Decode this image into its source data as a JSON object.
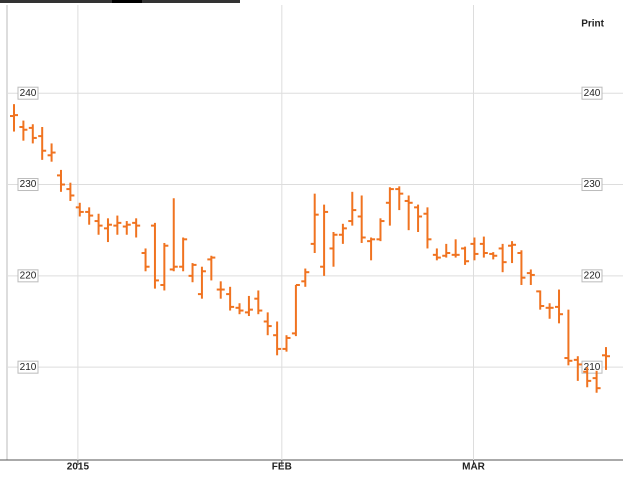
{
  "print_label": "Print",
  "chart_data": {
    "type": "ohlc",
    "color": "#f07320",
    "categories": [
      null,
      null,
      null,
      null,
      null,
      null,
      null,
      null,
      null,
      null,
      null,
      null,
      null,
      null,
      null,
      null,
      null,
      null,
      null,
      null,
      null,
      null,
      null,
      null,
      null,
      null,
      null,
      null,
      null,
      null,
      null,
      null,
      null,
      null,
      null,
      null,
      null,
      null,
      null,
      null,
      null,
      null,
      null,
      null,
      null,
      null,
      null,
      null,
      null,
      null,
      null,
      null,
      null,
      null,
      null,
      null,
      null,
      null,
      null,
      null,
      null,
      null,
      null,
      null
    ],
    "open": [
      237.5,
      236.3,
      236.2,
      235.3,
      233.2,
      231,
      229.5,
      227.5,
      227,
      226,
      225.2,
      225.5,
      225.4,
      225.8,
      222.5,
      225.5,
      219,
      220.7,
      221,
      220,
      218,
      221.8,
      218.5,
      218,
      216.5,
      216,
      217.5,
      215,
      213.5,
      212,
      213.7,
      219.4,
      223.5,
      221,
      223,
      224.5,
      226,
      226.5,
      223.8,
      224,
      228,
      229.5,
      228.2,
      227.5,
      226.8,
      222.3,
      222.2,
      222.3,
      223,
      223.5,
      223.5,
      222.4,
      223,
      223.3,
      222.5,
      220.3,
      218.3,
      216.5,
      216.6,
      211,
      210.8,
      209.5,
      208.8,
      211.3
    ],
    "high": [
      238.8,
      237,
      236.6,
      236.3,
      234.5,
      231.6,
      230.2,
      228,
      227.5,
      226.8,
      226.3,
      226.6,
      226,
      226.3,
      223,
      225.8,
      223.6,
      228.5,
      224.2,
      221.4,
      221,
      222.2,
      219.4,
      218.8,
      217,
      217.8,
      218.4,
      216,
      215,
      213.5,
      219,
      220.8,
      229,
      227.8,
      224.8,
      225.7,
      229.2,
      228.8,
      224.2,
      226.3,
      229.7,
      229.8,
      228.8,
      227.8,
      227.5,
      223,
      223.5,
      224,
      223.2,
      224.2,
      224.3,
      222.6,
      223.5,
      223.8,
      222.8,
      220.7,
      218.4,
      217,
      218.5,
      216.3,
      211.2,
      210,
      209.6,
      212.2
    ],
    "low": [
      235.8,
      234.8,
      234.5,
      232.7,
      232.5,
      229.2,
      228.2,
      226.5,
      225.6,
      224.5,
      223.7,
      224.5,
      224.5,
      224.2,
      220.5,
      218.6,
      218.4,
      220.5,
      220.5,
      219.3,
      217.5,
      219.5,
      217.5,
      216.2,
      215.8,
      215.6,
      215.8,
      213.5,
      211.3,
      211.7,
      213.4,
      218.8,
      222.5,
      220,
      221,
      223.5,
      225.5,
      223.6,
      221.7,
      223.8,
      225.5,
      227.2,
      225,
      224.8,
      223,
      221.7,
      222,
      222,
      221.2,
      221.7,
      222,
      221.8,
      220.4,
      221.4,
      219,
      219,
      216.3,
      215.3,
      214.8,
      210.2,
      208.5,
      207.8,
      207.2,
      209.7
    ],
    "close": [
      237.6,
      236,
      235.1,
      233.7,
      233.5,
      230,
      228.8,
      227,
      226.6,
      225.5,
      225.6,
      225.8,
      225.6,
      225.5,
      221,
      219.5,
      223.3,
      221,
      224,
      221.2,
      220.5,
      222,
      218.5,
      216.6,
      216.2,
      216.3,
      216.2,
      214.5,
      212,
      213.2,
      219,
      220.4,
      226.7,
      227,
      224.5,
      225.2,
      227.2,
      224.2,
      224,
      226,
      229.5,
      229,
      228,
      226.5,
      224,
      222,
      222.5,
      222.3,
      221.6,
      222.4,
      222.5,
      222.2,
      221.5,
      223.4,
      219.8,
      220.1,
      216.7,
      216.5,
      215.8,
      210.7,
      210.3,
      208.5,
      207.7,
      211.2
    ],
    "ylim": [
      200,
      249
    ],
    "yticks": [
      210,
      220,
      230,
      240
    ],
    "xticks": [
      {
        "value": 6.8,
        "label": "2015"
      },
      {
        "value": 28.5,
        "label": "FEB"
      },
      {
        "value": 48.9,
        "label": "MAR"
      }
    ],
    "grid": true
  }
}
